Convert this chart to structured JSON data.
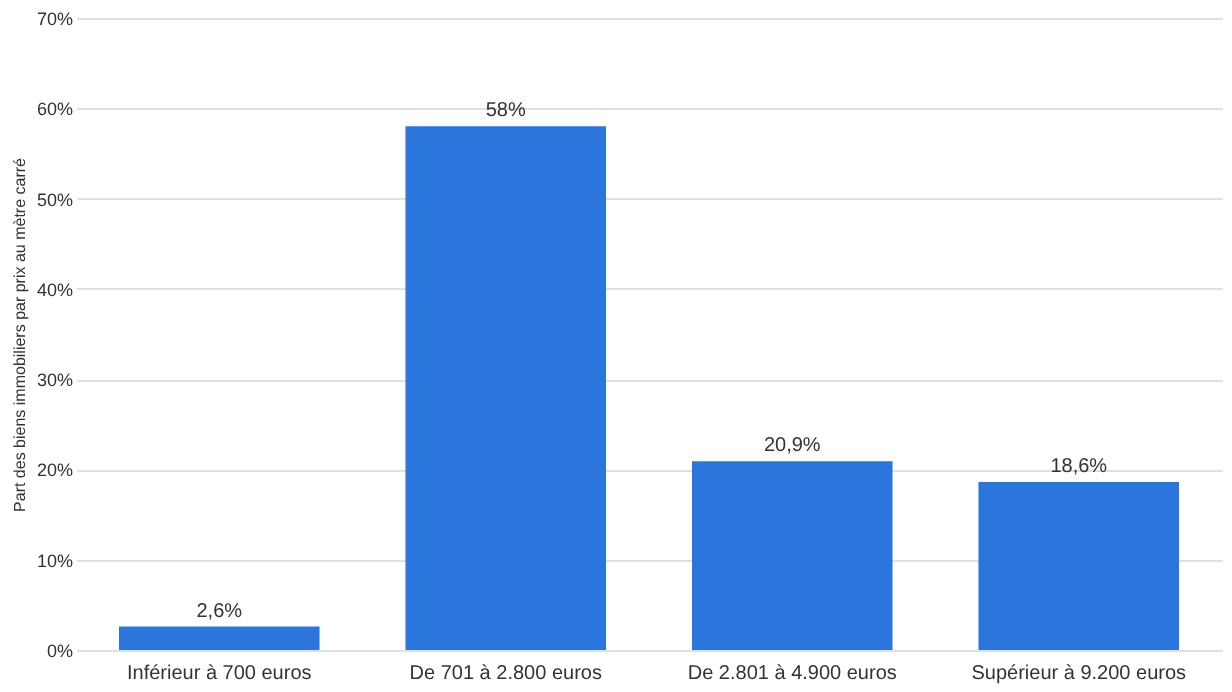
{
  "chart_data": {
    "type": "bar",
    "ylabel": "Part des biens immobiliers par prix au mètre carré",
    "categories": [
      "Inférieur à 700 euros",
      "De 701 à 2.800 euros",
      "De 2.801 à 4.900 euros",
      "Supérieur à 9.200 euros"
    ],
    "values": [
      2.6,
      58,
      20.9,
      18.6
    ],
    "value_labels": [
      "2,6%",
      "58%",
      "20,9%",
      "18,6%"
    ],
    "color": "#2a76dd",
    "ylim": [
      0,
      70
    ],
    "yticks": [
      {
        "value": 0,
        "label": "0%"
      },
      {
        "value": 10,
        "label": "10%"
      },
      {
        "value": 20,
        "label": "20%"
      },
      {
        "value": 30,
        "label": "30%"
      },
      {
        "value": 40,
        "label": "40%"
      },
      {
        "value": 50,
        "label": "50%"
      },
      {
        "value": 60,
        "label": "60%"
      },
      {
        "value": 70,
        "label": "70%"
      }
    ],
    "grid": "y"
  }
}
